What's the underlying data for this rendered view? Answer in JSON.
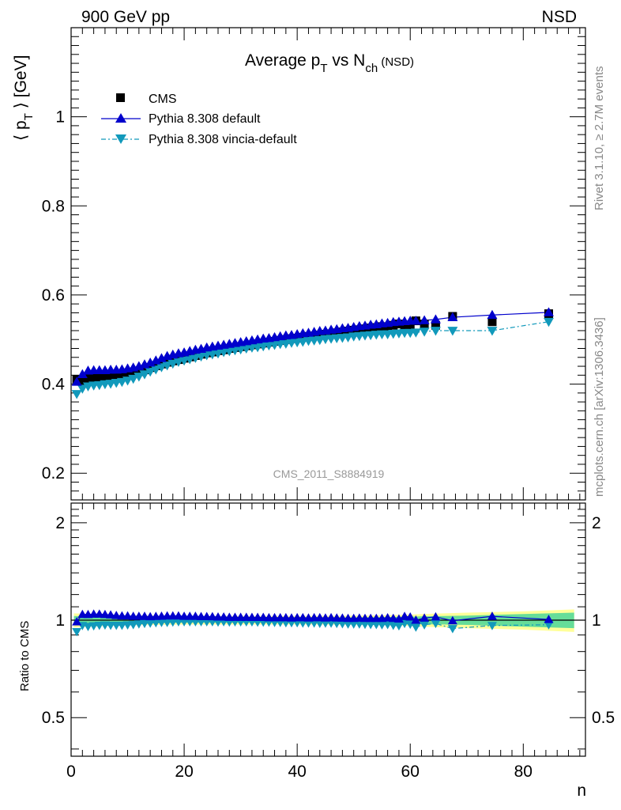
{
  "header": {
    "left_label": "900 GeV pp",
    "right_label": "NSD"
  },
  "side_text": {
    "rivet": "Rivet 3.1.10, ≥ 2.7M events",
    "mcplots": "mcplots.cern.ch [arXiv:1306.3436]"
  },
  "chart_data": [
    {
      "type": "scatter",
      "title_main": "Average p",
      "title_sub1": "T",
      "title_mid": " vs N",
      "title_sub2": "ch",
      "title_tail": " (NSD)",
      "ylabel_pre": "⟨ p",
      "ylabel_sub": "T",
      "ylabel_post": " ⟩ [GeV]",
      "ylim": [
        0.14,
        1.2
      ],
      "xlim": [
        0,
        91
      ],
      "y_ticks": [
        "0.2",
        "0.4",
        "0.6",
        "0.8",
        "1"
      ],
      "y_tick_values": [
        0.2,
        0.4,
        0.6,
        0.8,
        1.0
      ],
      "watermark": "CMS_2011_S8884919",
      "legend_position": "top-left",
      "legend": [
        {
          "name": "CMS",
          "marker": "square",
          "color": "#000000"
        },
        {
          "name": "Pythia 8.308 default",
          "marker": "triangle-up",
          "color": "#0000cc"
        },
        {
          "name": "Pythia 8.308 vincia-default",
          "marker": "triangle-down",
          "color": "#1199bb"
        }
      ],
      "series": [
        {
          "name": "CMS",
          "x": [
            1,
            2,
            3,
            4,
            5,
            6,
            7,
            8,
            9,
            10,
            11,
            12,
            13,
            14,
            15,
            16,
            17,
            18,
            19,
            20,
            21,
            22,
            23,
            24,
            25,
            26,
            27,
            28,
            29,
            30,
            31,
            32,
            33,
            34,
            35,
            36,
            37,
            38,
            39,
            40,
            41,
            42,
            43,
            44,
            45,
            46,
            47,
            48,
            49,
            50,
            51,
            52,
            53,
            54,
            55,
            56,
            57,
            58,
            59,
            60,
            61,
            62.5,
            64.5,
            67.5,
            74.5,
            84.5
          ],
          "y": [
            0.41,
            0.405,
            0.413,
            0.413,
            0.413,
            0.414,
            0.416,
            0.418,
            0.42,
            0.422,
            0.425,
            0.428,
            0.432,
            0.437,
            0.441,
            0.445,
            0.449,
            0.452,
            0.455,
            0.458,
            0.461,
            0.464,
            0.467,
            0.47,
            0.472,
            0.475,
            0.477,
            0.48,
            0.482,
            0.484,
            0.486,
            0.488,
            0.49,
            0.492,
            0.494,
            0.496,
            0.498,
            0.5,
            0.502,
            0.503,
            0.505,
            0.507,
            0.508,
            0.51,
            0.512,
            0.513,
            0.515,
            0.517,
            0.519,
            0.521,
            0.522,
            0.524,
            0.526,
            0.527,
            0.529,
            0.528,
            0.532,
            0.535,
            0.527,
            0.53,
            0.542,
            0.535,
            0.532,
            0.552,
            0.54,
            0.558
          ]
        },
        {
          "name": "Pythia 8.308 default",
          "x": [
            1,
            2,
            3,
            4,
            5,
            6,
            7,
            8,
            9,
            10,
            11,
            12,
            13,
            14,
            15,
            16,
            17,
            18,
            19,
            20,
            21,
            22,
            23,
            24,
            25,
            26,
            27,
            28,
            29,
            30,
            31,
            32,
            33,
            34,
            35,
            36,
            37,
            38,
            39,
            40,
            41,
            42,
            43,
            44,
            45,
            46,
            47,
            48,
            49,
            50,
            51,
            52,
            53,
            54,
            55,
            56,
            57,
            58,
            59,
            60,
            61,
            62.5,
            64.5,
            67.5,
            74.5,
            84.5
          ],
          "y": [
            0.405,
            0.422,
            0.43,
            0.431,
            0.431,
            0.431,
            0.432,
            0.432,
            0.433,
            0.435,
            0.437,
            0.44,
            0.444,
            0.448,
            0.453,
            0.458,
            0.463,
            0.466,
            0.469,
            0.471,
            0.474,
            0.477,
            0.479,
            0.482,
            0.484,
            0.486,
            0.488,
            0.49,
            0.492,
            0.494,
            0.496,
            0.498,
            0.5,
            0.502,
            0.503,
            0.505,
            0.507,
            0.509,
            0.51,
            0.512,
            0.514,
            0.515,
            0.517,
            0.519,
            0.52,
            0.522,
            0.523,
            0.525,
            0.526,
            0.528,
            0.53,
            0.531,
            0.533,
            0.534,
            0.536,
            0.537,
            0.539,
            0.54,
            0.541,
            0.542,
            0.542,
            0.543,
            0.545,
            0.55,
            0.555,
            0.561
          ]
        },
        {
          "name": "Pythia 8.308 vincia-default",
          "x": [
            1,
            2,
            3,
            4,
            5,
            6,
            7,
            8,
            9,
            10,
            11,
            12,
            13,
            14,
            15,
            16,
            17,
            18,
            19,
            20,
            21,
            22,
            23,
            24,
            25,
            26,
            27,
            28,
            29,
            30,
            31,
            32,
            33,
            34,
            35,
            36,
            37,
            38,
            39,
            40,
            41,
            42,
            43,
            44,
            45,
            46,
            47,
            48,
            49,
            50,
            51,
            52,
            53,
            54,
            55,
            56,
            57,
            58,
            59,
            60,
            61,
            62.5,
            64.5,
            67.5,
            74.5,
            84.5
          ],
          "y": [
            0.378,
            0.39,
            0.395,
            0.397,
            0.398,
            0.4,
            0.401,
            0.403,
            0.405,
            0.408,
            0.412,
            0.417,
            0.422,
            0.428,
            0.433,
            0.438,
            0.442,
            0.446,
            0.45,
            0.453,
            0.456,
            0.459,
            0.462,
            0.465,
            0.467,
            0.469,
            0.472,
            0.474,
            0.476,
            0.478,
            0.48,
            0.482,
            0.483,
            0.485,
            0.487,
            0.488,
            0.49,
            0.491,
            0.493,
            0.494,
            0.495,
            0.497,
            0.498,
            0.499,
            0.501,
            0.502,
            0.503,
            0.504,
            0.505,
            0.507,
            0.508,
            0.509,
            0.51,
            0.511,
            0.512,
            0.512,
            0.513,
            0.514,
            0.515,
            0.515,
            0.516,
            0.518,
            0.52,
            0.52,
            0.52,
            0.54
          ]
        }
      ]
    },
    {
      "type": "scatter",
      "ylabel": "Ratio to CMS",
      "xlabel": "n",
      "ylim": [
        0.38,
        2.3
      ],
      "xlim": [
        0,
        91
      ],
      "log_y": true,
      "x_ticks": [
        "0",
        "20",
        "40",
        "60",
        "80"
      ],
      "x_tick_values": [
        0,
        20,
        40,
        60,
        80
      ],
      "y_ticks": [
        "0.5",
        "1",
        "2"
      ],
      "y_tick_values": [
        0.5,
        1,
        2
      ],
      "band_colors": {
        "inner": "#66dd99",
        "outer": "#ffff99"
      },
      "series": [
        {
          "name": "Pythia 8.308 default",
          "x": [
            1,
            2,
            3,
            4,
            5,
            6,
            7,
            8,
            9,
            10,
            11,
            12,
            13,
            14,
            15,
            16,
            17,
            18,
            19,
            20,
            21,
            22,
            23,
            24,
            25,
            26,
            27,
            28,
            29,
            30,
            31,
            32,
            33,
            34,
            35,
            36,
            37,
            38,
            39,
            40,
            41,
            42,
            43,
            44,
            45,
            46,
            47,
            48,
            49,
            50,
            51,
            52,
            53,
            54,
            55,
            56,
            57,
            58,
            59,
            60,
            61,
            62.5,
            64.5,
            67.5,
            74.5,
            84.5
          ],
          "y": [
            0.988,
            1.042,
            1.041,
            1.044,
            1.044,
            1.041,
            1.038,
            1.034,
            1.031,
            1.031,
            1.028,
            1.028,
            1.028,
            1.025,
            1.027,
            1.029,
            1.031,
            1.031,
            1.031,
            1.028,
            1.028,
            1.028,
            1.026,
            1.026,
            1.025,
            1.023,
            1.023,
            1.021,
            1.021,
            1.021,
            1.021,
            1.02,
            1.02,
            1.02,
            1.018,
            1.018,
            1.018,
            1.018,
            1.016,
            1.018,
            1.018,
            1.016,
            1.018,
            1.018,
            1.016,
            1.018,
            1.016,
            1.015,
            1.013,
            1.013,
            1.015,
            1.013,
            1.013,
            1.013,
            1.013,
            1.017,
            1.013,
            1.009,
            1.027,
            1.023,
            1.0,
            1.015,
            1.024,
            0.996,
            1.028,
            1.005
          ]
        },
        {
          "name": "Pythia 8.308 vincia-default",
          "x": [
            1,
            2,
            3,
            4,
            5,
            6,
            7,
            8,
            9,
            10,
            11,
            12,
            13,
            14,
            15,
            16,
            17,
            18,
            19,
            20,
            21,
            22,
            23,
            24,
            25,
            26,
            27,
            28,
            29,
            30,
            31,
            32,
            33,
            34,
            35,
            36,
            37,
            38,
            39,
            40,
            41,
            42,
            43,
            44,
            45,
            46,
            47,
            48,
            49,
            50,
            51,
            52,
            53,
            54,
            55,
            56,
            57,
            58,
            59,
            60,
            61,
            62.5,
            64.5,
            67.5,
            74.5,
            84.5
          ],
          "y": [
            0.922,
            0.963,
            0.956,
            0.961,
            0.964,
            0.966,
            0.964,
            0.964,
            0.964,
            0.967,
            0.969,
            0.974,
            0.977,
            0.979,
            0.982,
            0.984,
            0.984,
            0.987,
            0.989,
            0.989,
            0.989,
            0.989,
            0.989,
            0.989,
            0.989,
            0.987,
            0.989,
            0.987,
            0.988,
            0.988,
            0.988,
            0.988,
            0.986,
            0.986,
            0.986,
            0.984,
            0.984,
            0.982,
            0.982,
            0.982,
            0.98,
            0.98,
            0.98,
            0.978,
            0.979,
            0.979,
            0.977,
            0.975,
            0.973,
            0.973,
            0.973,
            0.971,
            0.97,
            0.97,
            0.968,
            0.97,
            0.964,
            0.961,
            0.977,
            0.972,
            0.952,
            0.968,
            0.977,
            0.942,
            0.963,
            0.968
          ]
        }
      ]
    }
  ]
}
